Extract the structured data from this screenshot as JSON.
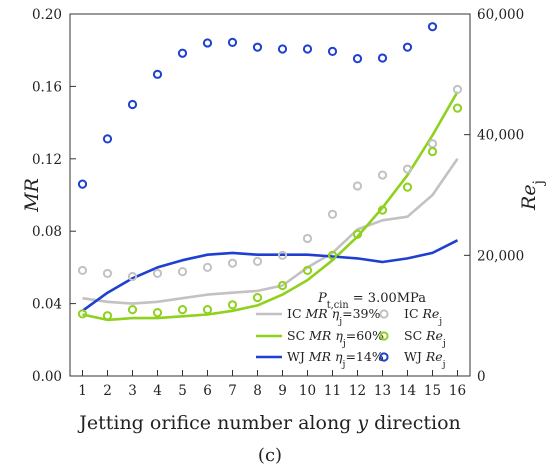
{
  "panel_label": "(c)",
  "chart_data": {
    "type": "line",
    "x": [
      1,
      2,
      3,
      4,
      5,
      6,
      7,
      8,
      9,
      10,
      11,
      12,
      13,
      14,
      15,
      16
    ],
    "xlabel_parts": [
      "Jetting orifice number along ",
      "y",
      " direction"
    ],
    "ylabel_left": "MR",
    "ylabel_right": {
      "base": "Re",
      "sub": "j"
    },
    "xlim": [
      0.5,
      16.5
    ],
    "ylim_left": [
      0,
      0.2
    ],
    "ylim_right": [
      0,
      60000
    ],
    "yticks_left": [
      0.0,
      0.04,
      0.08,
      0.12,
      0.16,
      0.2
    ],
    "yticks_left_labels": [
      "0.00",
      "0.04",
      "0.08",
      "0.12",
      "0.16",
      "0.20"
    ],
    "yticks_right": [
      0,
      20000,
      40000,
      60000
    ],
    "yticks_right_labels": [
      "0",
      "20,000",
      "40,000",
      "60,000"
    ],
    "xtick_labels": [
      "1",
      "2",
      "3",
      "4",
      "5",
      "6",
      "7",
      "8",
      "9",
      "10",
      "11",
      "12",
      "13",
      "14",
      "15",
      "16"
    ],
    "condition": {
      "base": "P",
      "sub": "t,cin",
      "value": " = 3.00MPa"
    },
    "legend_position": "bottom-right",
    "lines": [
      {
        "key": "IC_MR",
        "color": "#c2c2c2",
        "axis": "left",
        "legend": {
          "prefix": "IC ",
          "italic": "MR",
          "eta": "η",
          "sub": "j",
          "value": "=39%"
        },
        "values": [
          0.043,
          0.041,
          0.04,
          0.041,
          0.043,
          0.045,
          0.046,
          0.047,
          0.05,
          0.06,
          0.068,
          0.081,
          0.086,
          0.088,
          0.1,
          0.12
        ]
      },
      {
        "key": "SC_MR",
        "color": "#8ed11e",
        "axis": "left",
        "legend": {
          "prefix": "SC ",
          "italic": "MR",
          "eta": "η",
          "sub": "j",
          "value": "=60%"
        },
        "values": [
          0.034,
          0.031,
          0.032,
          0.032,
          0.033,
          0.034,
          0.036,
          0.039,
          0.045,
          0.053,
          0.064,
          0.077,
          0.093,
          0.111,
          0.133,
          0.157
        ]
      },
      {
        "key": "WJ_MR",
        "color": "#1e3fd0",
        "axis": "left",
        "legend": {
          "prefix": "WJ ",
          "italic": "MR",
          "eta": "η",
          "sub": "j",
          "value": "=14%"
        },
        "values": [
          0.036,
          0.046,
          0.054,
          0.06,
          0.064,
          0.067,
          0.068,
          0.067,
          0.067,
          0.067,
          0.066,
          0.065,
          0.063,
          0.065,
          0.068,
          0.075
        ]
      }
    ],
    "markers": [
      {
        "key": "IC_Re",
        "color": "#c2c2c2",
        "axis": "right",
        "legend": {
          "prefix": "IC ",
          "base": "Re",
          "sub": "j"
        },
        "values": [
          17500,
          17000,
          16500,
          17000,
          17300,
          18000,
          18700,
          19000,
          20000,
          22800,
          26800,
          31500,
          33300,
          34300,
          38500,
          47500
        ]
      },
      {
        "key": "SC_Re",
        "color": "#8ed11e",
        "axis": "right",
        "legend": {
          "prefix": "SC ",
          "base": "Re",
          "sub": "j"
        },
        "values": [
          10300,
          10000,
          11000,
          10500,
          11000,
          11000,
          11800,
          13000,
          15000,
          17500,
          20000,
          23500,
          27500,
          31300,
          37200,
          44400
        ]
      },
      {
        "key": "WJ_Re",
        "color": "#1e3fd0",
        "axis": "right",
        "legend": {
          "prefix": "WJ ",
          "base": "Re",
          "sub": "j"
        },
        "values": [
          31800,
          39300,
          45000,
          50000,
          53500,
          55200,
          55300,
          54500,
          54200,
          54200,
          53800,
          52600,
          52700,
          54500,
          57900,
          null
        ]
      }
    ]
  }
}
